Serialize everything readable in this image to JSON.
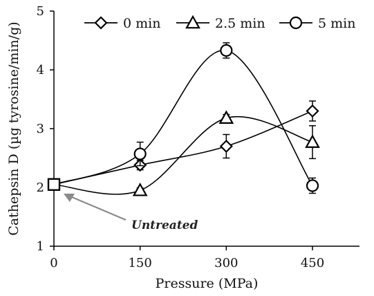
{
  "chart_data": {
    "type": "line",
    "xlabel": "Pressure (MPa)",
    "ylabel": "Cathepsin D (µg tyrosine/min/g)",
    "xlim": [
      0,
      450
    ],
    "ylim": [
      1,
      5
    ],
    "xticks": [
      0,
      150,
      300,
      450
    ],
    "yticks": [
      1,
      2,
      3,
      4,
      5
    ],
    "grid": false,
    "legend_position": "top",
    "series": [
      {
        "name": "0 min",
        "marker": "diamond",
        "x": [
          0,
          150,
          300,
          450
        ],
        "y": [
          2.05,
          2.38,
          2.7,
          3.3
        ],
        "error": [
          0.05,
          0.08,
          0.2,
          0.17
        ]
      },
      {
        "name": "2.5 min",
        "marker": "triangle",
        "x": [
          0,
          150,
          300,
          450
        ],
        "y": [
          2.05,
          1.95,
          3.18,
          2.77
        ],
        "error": [
          0.05,
          0.04,
          0.06,
          0.28
        ]
      },
      {
        "name": "5 min",
        "marker": "circle",
        "x": [
          0,
          150,
          300,
          450
        ],
        "y": [
          2.05,
          2.57,
          4.33,
          2.03
        ],
        "error": [
          0.05,
          0.2,
          0.13,
          0.13
        ]
      }
    ],
    "annotations": [
      {
        "text": "Untreated",
        "points_to": {
          "x": 0,
          "y": 2.05
        }
      }
    ]
  },
  "colors": {
    "series_line": "#000000",
    "arrow": "#8a8a8a"
  }
}
